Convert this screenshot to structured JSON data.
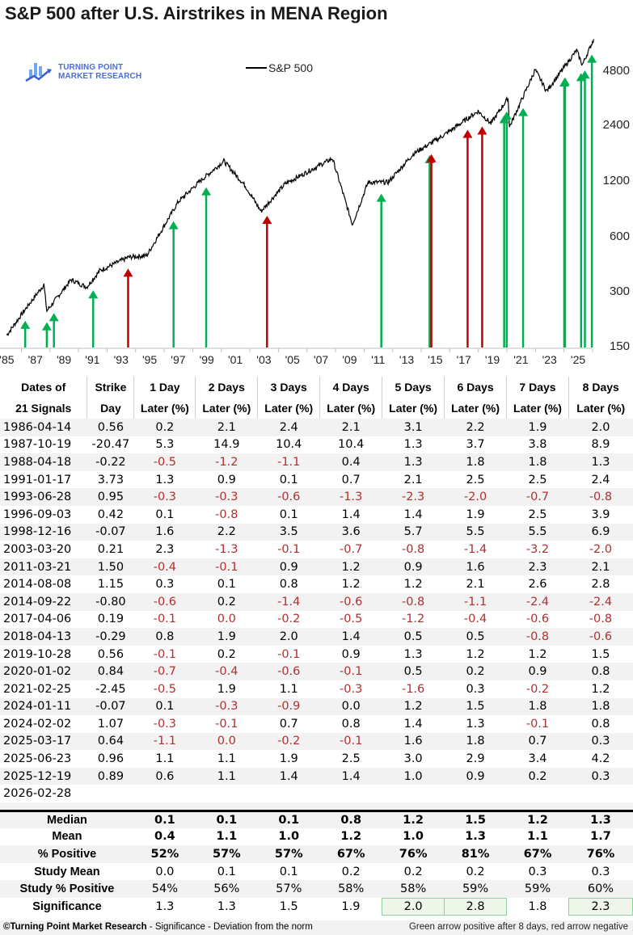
{
  "title": "S&P 500 after U.S. Airstrikes in MENA Region",
  "logo": {
    "line1": "TURNING POINT",
    "line2": "MARKET RESEARCH",
    "color": "#4a6fd4"
  },
  "legend": {
    "label": "S&P 500"
  },
  "colors": {
    "positive_arrow": "#00b050",
    "negative_arrow": "#c00000",
    "neg_text": "#b03030",
    "significance_highlight": "#8fd19e"
  },
  "chart_data": {
    "type": "line",
    "title": "S&P 500 after U.S. Airstrikes in MENA Region",
    "series": [
      {
        "name": "S&P 500",
        "scale": "log"
      }
    ],
    "y_ticks": [
      "4800",
      "2400",
      "1200",
      "600",
      "300",
      "150"
    ],
    "ylim": [
      150,
      6000
    ],
    "x_ticks": [
      "'85",
      "'87",
      "'89",
      "'91",
      "'93",
      "'95",
      "'97",
      "'99",
      "'01",
      "'03",
      "'05",
      "'07",
      "'09",
      "'11",
      "'13",
      "'15",
      "'17",
      "'19",
      "'21",
      "'23",
      "'25"
    ],
    "approx_points": [
      {
        "x": 1985.0,
        "y": 170
      },
      {
        "x": 1986.3,
        "y": 235
      },
      {
        "x": 1987.6,
        "y": 320
      },
      {
        "x": 1987.8,
        "y": 230
      },
      {
        "x": 1989.5,
        "y": 340
      },
      {
        "x": 1990.6,
        "y": 310
      },
      {
        "x": 1991.5,
        "y": 380
      },
      {
        "x": 1993.5,
        "y": 450
      },
      {
        "x": 1994.8,
        "y": 460
      },
      {
        "x": 1997.0,
        "y": 900
      },
      {
        "x": 1998.6,
        "y": 1180
      },
      {
        "x": 2000.2,
        "y": 1500
      },
      {
        "x": 2001.7,
        "y": 1100
      },
      {
        "x": 2002.8,
        "y": 800
      },
      {
        "x": 2004.5,
        "y": 1130
      },
      {
        "x": 2007.8,
        "y": 1550
      },
      {
        "x": 2009.2,
        "y": 680
      },
      {
        "x": 2010.3,
        "y": 1150
      },
      {
        "x": 2011.7,
        "y": 1150
      },
      {
        "x": 2013.5,
        "y": 1650
      },
      {
        "x": 2015.5,
        "y": 2050
      },
      {
        "x": 2018.0,
        "y": 2800
      },
      {
        "x": 2018.9,
        "y": 2400
      },
      {
        "x": 2020.1,
        "y": 3300
      },
      {
        "x": 2020.2,
        "y": 2300
      },
      {
        "x": 2022.0,
        "y": 4700
      },
      {
        "x": 2022.8,
        "y": 3600
      },
      {
        "x": 2024.9,
        "y": 6000
      },
      {
        "x": 2025.3,
        "y": 5000
      },
      {
        "x": 2026.1,
        "y": 6900
      }
    ],
    "signals": [
      {
        "date": "1986-04-14",
        "color": "green"
      },
      {
        "date": "1987-10-19",
        "color": "green"
      },
      {
        "date": "1988-04-18",
        "color": "green"
      },
      {
        "date": "1991-01-17",
        "color": "green"
      },
      {
        "date": "1993-06-28",
        "color": "red"
      },
      {
        "date": "1996-09-03",
        "color": "green"
      },
      {
        "date": "1998-12-16",
        "color": "green"
      },
      {
        "date": "2003-03-20",
        "color": "red"
      },
      {
        "date": "2011-03-21",
        "color": "green"
      },
      {
        "date": "2014-08-08",
        "color": "green"
      },
      {
        "date": "2014-09-22",
        "color": "red"
      },
      {
        "date": "2017-04-06",
        "color": "red"
      },
      {
        "date": "2018-04-13",
        "color": "red"
      },
      {
        "date": "2019-10-28",
        "color": "green"
      },
      {
        "date": "2020-01-02",
        "color": "green"
      },
      {
        "date": "2021-02-25",
        "color": "green"
      },
      {
        "date": "2024-01-11",
        "color": "green"
      },
      {
        "date": "2024-02-02",
        "color": "green"
      },
      {
        "date": "2025-03-17",
        "color": "green"
      },
      {
        "date": "2025-06-23",
        "color": "green"
      },
      {
        "date": "2025-12-19",
        "color": "green"
      }
    ],
    "legend_position": "top-center",
    "grid": false
  },
  "table": {
    "headers": [
      [
        "Dates of",
        "21 Signals"
      ],
      [
        "Strike",
        "Day"
      ],
      [
        "1 Day",
        "Later (%)"
      ],
      [
        "2 Days",
        "Later (%)"
      ],
      [
        "3 Days",
        "Later (%)"
      ],
      [
        "4 Days",
        "Later (%)"
      ],
      [
        "5 Days",
        "Later (%)"
      ],
      [
        "6 Days",
        "Later (%)"
      ],
      [
        "7 Days",
        "Later (%)"
      ],
      [
        "8 Days",
        "Later (%)"
      ]
    ],
    "rows": [
      [
        "1986-04-14",
        "0.56",
        "0.2",
        "2.1",
        "2.4",
        "2.1",
        "3.1",
        "2.2",
        "1.9",
        "2.0"
      ],
      [
        "1987-10-19",
        "-20.47",
        "5.3",
        "14.9",
        "10.4",
        "10.4",
        "1.3",
        "3.7",
        "3.8",
        "8.9"
      ],
      [
        "1988-04-18",
        "-0.22",
        "-0.5",
        "-1.2",
        "-1.1",
        "0.4",
        "1.3",
        "1.8",
        "1.8",
        "1.3"
      ],
      [
        "1991-01-17",
        "3.73",
        "1.3",
        "0.9",
        "0.1",
        "0.7",
        "2.1",
        "2.5",
        "2.5",
        "2.4"
      ],
      [
        "1993-06-28",
        "0.95",
        "-0.3",
        "-0.3",
        "-0.6",
        "-1.3",
        "-2.3",
        "-2.0",
        "-0.7",
        "-0.8"
      ],
      [
        "1996-09-03",
        "0.42",
        "0.1",
        "-0.8",
        "0.1",
        "1.4",
        "1.4",
        "1.9",
        "2.5",
        "3.9"
      ],
      [
        "1998-12-16",
        "-0.07",
        "1.6",
        "2.2",
        "3.5",
        "3.6",
        "5.7",
        "5.5",
        "5.5",
        "6.9"
      ],
      [
        "2003-03-20",
        "0.21",
        "2.3",
        "-1.3",
        "-0.1",
        "-0.7",
        "-0.8",
        "-1.4",
        "-3.2",
        "-2.0"
      ],
      [
        "2011-03-21",
        "1.50",
        "-0.4",
        "-0.1",
        "0.9",
        "1.2",
        "0.9",
        "1.6",
        "2.3",
        "2.1"
      ],
      [
        "2014-08-08",
        "1.15",
        "0.3",
        "0.1",
        "0.8",
        "1.2",
        "1.2",
        "2.1",
        "2.6",
        "2.8"
      ],
      [
        "2014-09-22",
        "-0.80",
        "-0.6",
        "0.2",
        "-1.4",
        "-0.6",
        "-0.8",
        "-1.1",
        "-2.4",
        "-2.4"
      ],
      [
        "2017-04-06",
        "0.19",
        "-0.1",
        "0.0",
        "-0.2",
        "-0.5",
        "-1.2",
        "-0.4",
        "-0.6",
        "-0.8"
      ],
      [
        "2018-04-13",
        "-0.29",
        "0.8",
        "1.9",
        "2.0",
        "1.4",
        "0.5",
        "0.5",
        "-0.8",
        "-0.6"
      ],
      [
        "2019-10-28",
        "0.56",
        "-0.1",
        "0.2",
        "-0.1",
        "0.9",
        "1.3",
        "1.2",
        "1.2",
        "1.5"
      ],
      [
        "2020-01-02",
        "0.84",
        "-0.7",
        "-0.4",
        "-0.6",
        "-0.1",
        "0.5",
        "0.2",
        "0.9",
        "0.8"
      ],
      [
        "2021-02-25",
        "-2.45",
        "-0.5",
        "1.9",
        "1.1",
        "-0.3",
        "-1.6",
        "0.3",
        "-0.2",
        "1.2"
      ],
      [
        "2024-01-11",
        "-0.07",
        "0.1",
        "-0.3",
        "-0.9",
        "0.0",
        "1.2",
        "1.5",
        "1.8",
        "1.8"
      ],
      [
        "2024-02-02",
        "1.07",
        "-0.3",
        "-0.1",
        "0.7",
        "0.8",
        "1.4",
        "1.3",
        "-0.1",
        "0.8"
      ],
      [
        "2025-03-17",
        "0.64",
        "-1.1",
        "0.0",
        "-0.2",
        "-0.1",
        "1.6",
        "1.8",
        "0.7",
        "0.3"
      ],
      [
        "2025-06-23",
        "0.96",
        "1.1",
        "1.1",
        "1.9",
        "2.5",
        "3.0",
        "2.9",
        "3.4",
        "4.2"
      ],
      [
        "2025-12-19",
        "0.89",
        "0.6",
        "1.1",
        "1.4",
        "1.4",
        "1.0",
        "0.9",
        "0.2",
        "0.3"
      ],
      [
        "2026-02-28",
        "",
        "",
        "",
        "",
        "",
        "",
        "",
        "",
        ""
      ]
    ],
    "neg_red_cols_start": 2,
    "zero_red_cells": [
      [
        11,
        3
      ],
      [
        18,
        3
      ]
    ],
    "summary": [
      {
        "label": "Median",
        "bold": true,
        "values": [
          "0.1",
          "0.1",
          "0.1",
          "0.8",
          "1.2",
          "1.5",
          "1.2",
          "1.3"
        ]
      },
      {
        "label": "Mean",
        "bold": true,
        "values": [
          "0.4",
          "1.1",
          "1.0",
          "1.2",
          "1.0",
          "1.3",
          "1.1",
          "1.7"
        ]
      },
      {
        "label": "% Positive",
        "bold": true,
        "values": [
          "52%",
          "57%",
          "57%",
          "67%",
          "76%",
          "81%",
          "67%",
          "76%"
        ]
      },
      {
        "label": "Study Mean",
        "bold": false,
        "values": [
          "0.0",
          "0.1",
          "0.1",
          "0.2",
          "0.2",
          "0.2",
          "0.3",
          "0.3"
        ]
      },
      {
        "label": "Study % Positive",
        "bold": false,
        "values": [
          "54%",
          "56%",
          "57%",
          "58%",
          "58%",
          "59%",
          "59%",
          "60%"
        ]
      },
      {
        "label": "Significance",
        "bold": false,
        "values": [
          "1.3",
          "1.3",
          "1.5",
          "1.9",
          "2.0",
          "2.8",
          "1.8",
          "2.3"
        ],
        "highlight": [
          4,
          5,
          7
        ]
      }
    ]
  },
  "footer": {
    "left_bold": "©Turning Point Market Research",
    "left_rest": " - Significance - Deviation from the norm",
    "right": "Green arrow positive after 8 days, red arrow negative"
  }
}
